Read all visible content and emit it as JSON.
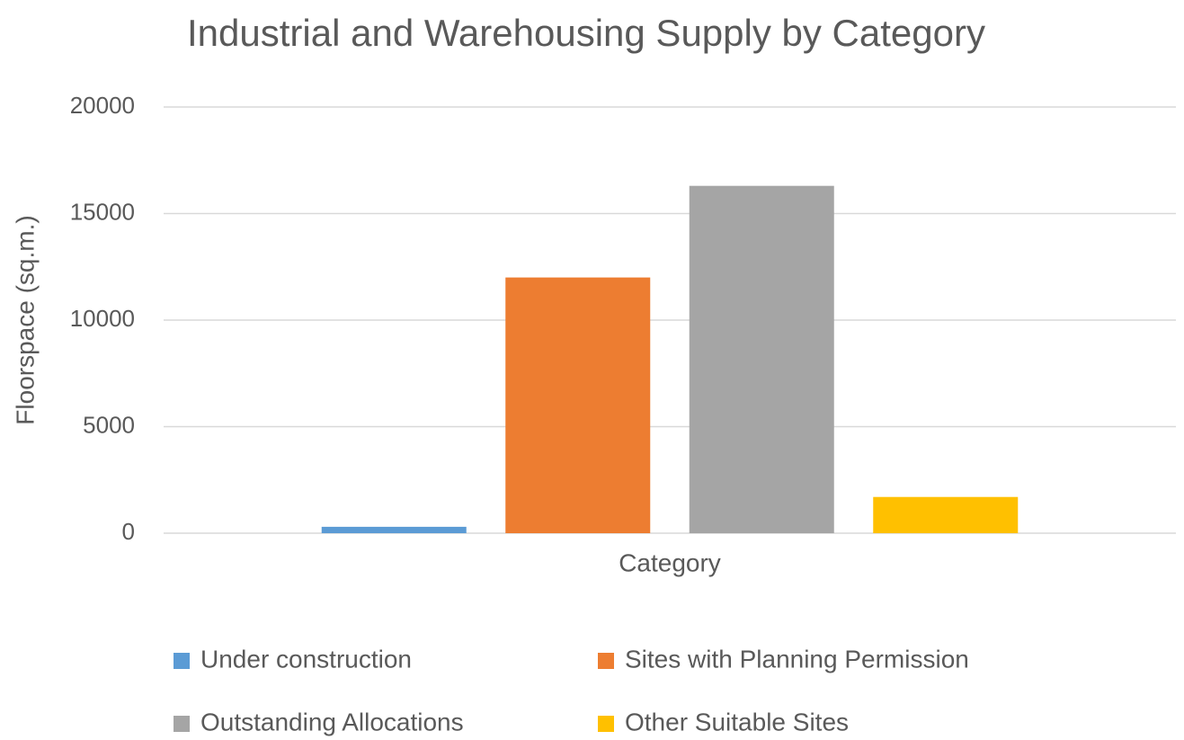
{
  "chart_data": {
    "type": "bar",
    "title": "Industrial and Warehousing Supply by Category",
    "ylabel": "Floorspace (sq.m.)",
    "categories": [
      "Category"
    ],
    "series": [
      {
        "name": "Under construction",
        "color": "#5b9bd5",
        "values": [
          300
        ]
      },
      {
        "name": "Sites with Planning Permission",
        "color": "#ed7d31",
        "values": [
          12000
        ]
      },
      {
        "name": "Outstanding Allocations",
        "color": "#a5a5a5",
        "values": [
          16300
        ]
      },
      {
        "name": "Other Suitable Sites",
        "color": "#ffc000",
        "values": [
          1700
        ]
      }
    ],
    "ylim": [
      0,
      20000
    ],
    "yticks": [
      0,
      5000,
      10000,
      15000,
      20000
    ],
    "grid": true,
    "legend": "bottom"
  }
}
